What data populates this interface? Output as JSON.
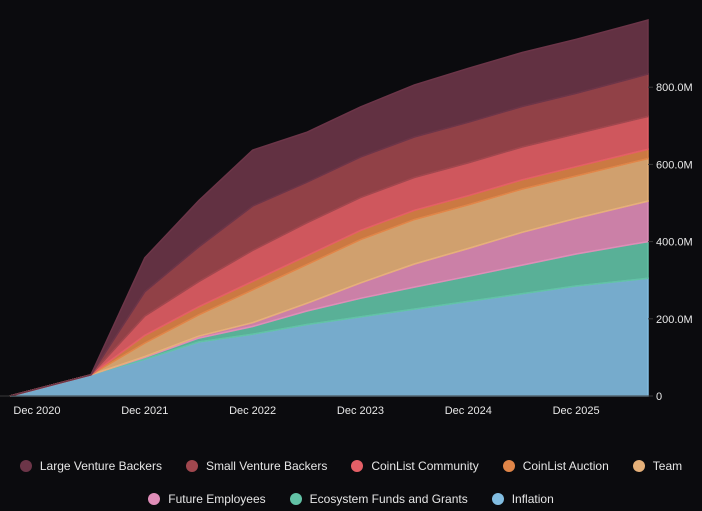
{
  "chart_data": {
    "type": "area",
    "stacked": true,
    "x": [
      "Sep 2020",
      "Jun 2021",
      "Dec 2021",
      "Jun 2022",
      "Dec 2022",
      "Jun 2023",
      "Dec 2023",
      "Jun 2024",
      "Dec 2024",
      "Jun 2025",
      "Dec 2025",
      "Aug 2026"
    ],
    "x_ticks": [
      "Dec 2020",
      "Dec 2021",
      "Dec 2022",
      "Dec 2023",
      "Dec 2024",
      "Dec 2025"
    ],
    "y_ticks": [
      "0",
      "200.0M",
      "400.0M",
      "600.0M",
      "800.0M"
    ],
    "ylim": [
      0,
      1000
    ],
    "y_axis_position": "right",
    "legend_position": "bottom",
    "series": [
      {
        "name": "Inflation",
        "color": "#82bde1",
        "values": [
          0,
          55,
          95,
          140,
          160,
          185,
          205,
          225,
          245,
          265,
          285,
          305
        ]
      },
      {
        "name": "Ecosystem Funds and Grants",
        "color": "#62c2a6",
        "values": [
          0,
          0,
          5,
          10,
          20,
          35,
          48,
          57,
          65,
          74,
          83,
          95
        ]
      },
      {
        "name": "Future Employees",
        "color": "#e08db8",
        "values": [
          0,
          0,
          2,
          5,
          10,
          20,
          40,
          60,
          72,
          85,
          92,
          105
        ]
      },
      {
        "name": "Team",
        "color": "#e6b079",
        "values": [
          0,
          0,
          35,
          55,
          85,
          100,
          112,
          115,
          113,
          112,
          110,
          110
        ]
      },
      {
        "name": "CoinList Auction",
        "color": "#e08548",
        "values": [
          0,
          0,
          20,
          21,
          22,
          23,
          24,
          24,
          24,
          24,
          24,
          24
        ]
      },
      {
        "name": "CoinList Community",
        "color": "#e45f66",
        "values": [
          0,
          0,
          50,
          65,
          80,
          85,
          85,
          85,
          85,
          85,
          85,
          85
        ]
      },
      {
        "name": "Small Venture Backers",
        "color": "#a0474e",
        "values": [
          0,
          0,
          63,
          90,
          115,
          105,
          105,
          105,
          105,
          105,
          105,
          110
        ]
      },
      {
        "name": "Large Venture Backers",
        "color": "#6c3548",
        "values": [
          0,
          0,
          88,
          120,
          145,
          130,
          130,
          135,
          140,
          140,
          140,
          140
        ]
      }
    ]
  },
  "legend_rows": [
    [
      "Large Venture Backers",
      "Small Venture Backers",
      "CoinList Community",
      "CoinList Auction",
      "Team"
    ],
    [
      "Future Employees",
      "Ecosystem Funds and Grants",
      "Inflation"
    ]
  ]
}
